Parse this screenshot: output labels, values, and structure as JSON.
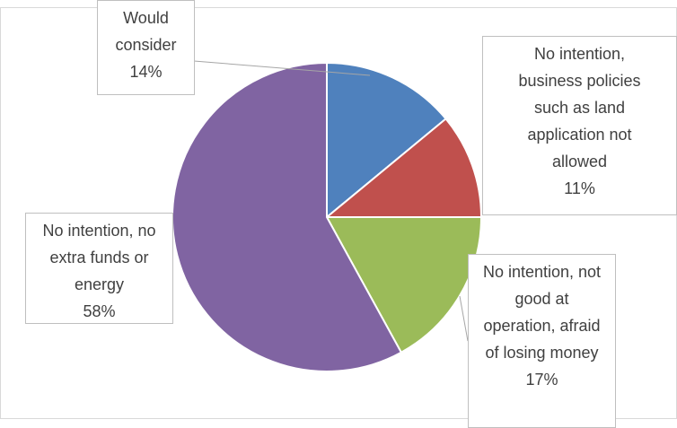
{
  "chart_data": {
    "type": "pie",
    "categories": [
      "Would consider",
      "No intention, business policies such as land application not allowed",
      "No intention, not good at operation, afraid of losing money",
      "No intention, no extra funds or energy"
    ],
    "values": [
      14,
      11,
      17,
      58
    ],
    "value_labels": [
      "14%",
      "11%",
      "17%",
      "58%"
    ],
    "colors": [
      "#4f81bd",
      "#c0504d",
      "#9bbb59",
      "#8064a2"
    ]
  }
}
